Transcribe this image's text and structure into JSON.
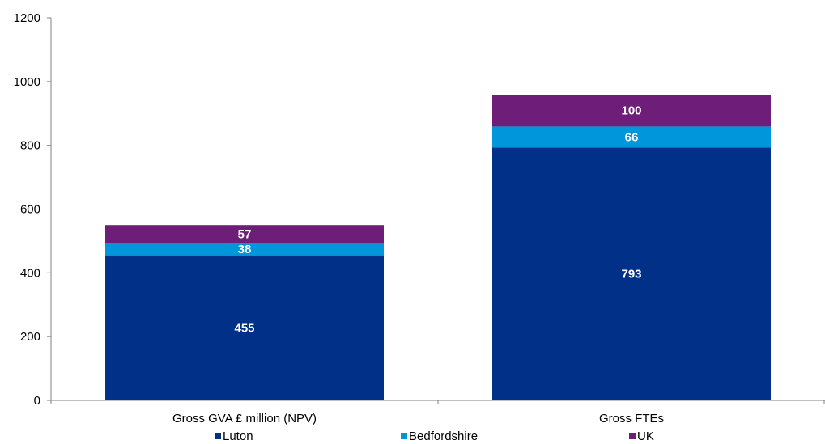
{
  "chart_data": {
    "type": "bar",
    "stacked": true,
    "categories": [
      "Gross GVA £ million (NPV)",
      "Gross FTEs"
    ],
    "series": [
      {
        "name": "Luton",
        "values": [
          455,
          793
        ],
        "color": "#003087"
      },
      {
        "name": "Bedfordshire",
        "values": [
          38,
          66
        ],
        "color": "#0096DC"
      },
      {
        "name": "UK",
        "values": [
          57,
          100
        ],
        "color": "#6E1E78"
      }
    ],
    "ylim": [
      0,
      1200
    ],
    "yticks": [
      0,
      200,
      400,
      600,
      800,
      1000,
      1200
    ],
    "ytick_labels": [
      "0",
      "200",
      "400",
      "600",
      "800",
      "1000",
      "1200"
    ],
    "grid": false,
    "legend_position": "bottom"
  }
}
